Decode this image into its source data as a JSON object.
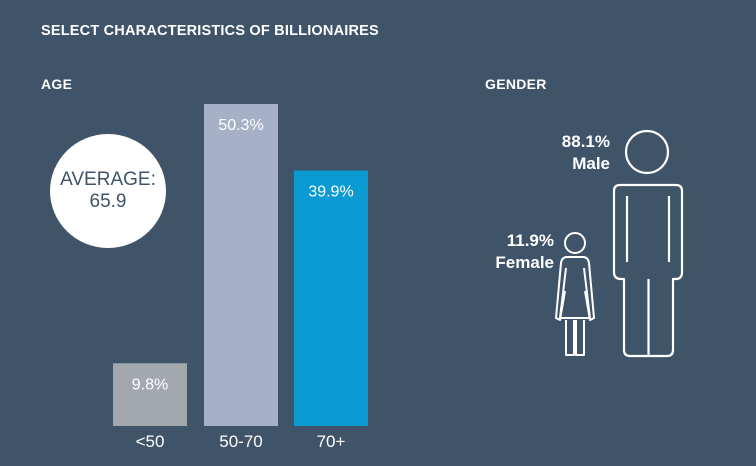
{
  "title": "SELECT CHARACTERISTICS OF BILLIONAIRES",
  "age_section": {
    "label": "AGE",
    "average_label": "AVERAGE:",
    "average_value": "65.9"
  },
  "gender_section": {
    "label": "GENDER",
    "male": {
      "value_text": "88.1%",
      "label": "Male",
      "value": 88.1,
      "icon": "male-figure-icon"
    },
    "female": {
      "value_text": "11.9%",
      "label": "Female",
      "value": 11.9,
      "icon": "female-figure-icon"
    }
  },
  "chart_data": {
    "type": "bar",
    "categories": [
      "<50",
      "50-70",
      "70+"
    ],
    "values": [
      9.8,
      50.3,
      39.9
    ],
    "value_labels": [
      "9.8%",
      "50.3%",
      "39.9%"
    ],
    "colors": [
      "#a3a8ae",
      "#a6b1c8",
      "#0b9ad2"
    ],
    "title": "",
    "xlabel": "",
    "ylabel": "",
    "ylim": [
      0,
      50.3
    ],
    "grid": false
  }
}
